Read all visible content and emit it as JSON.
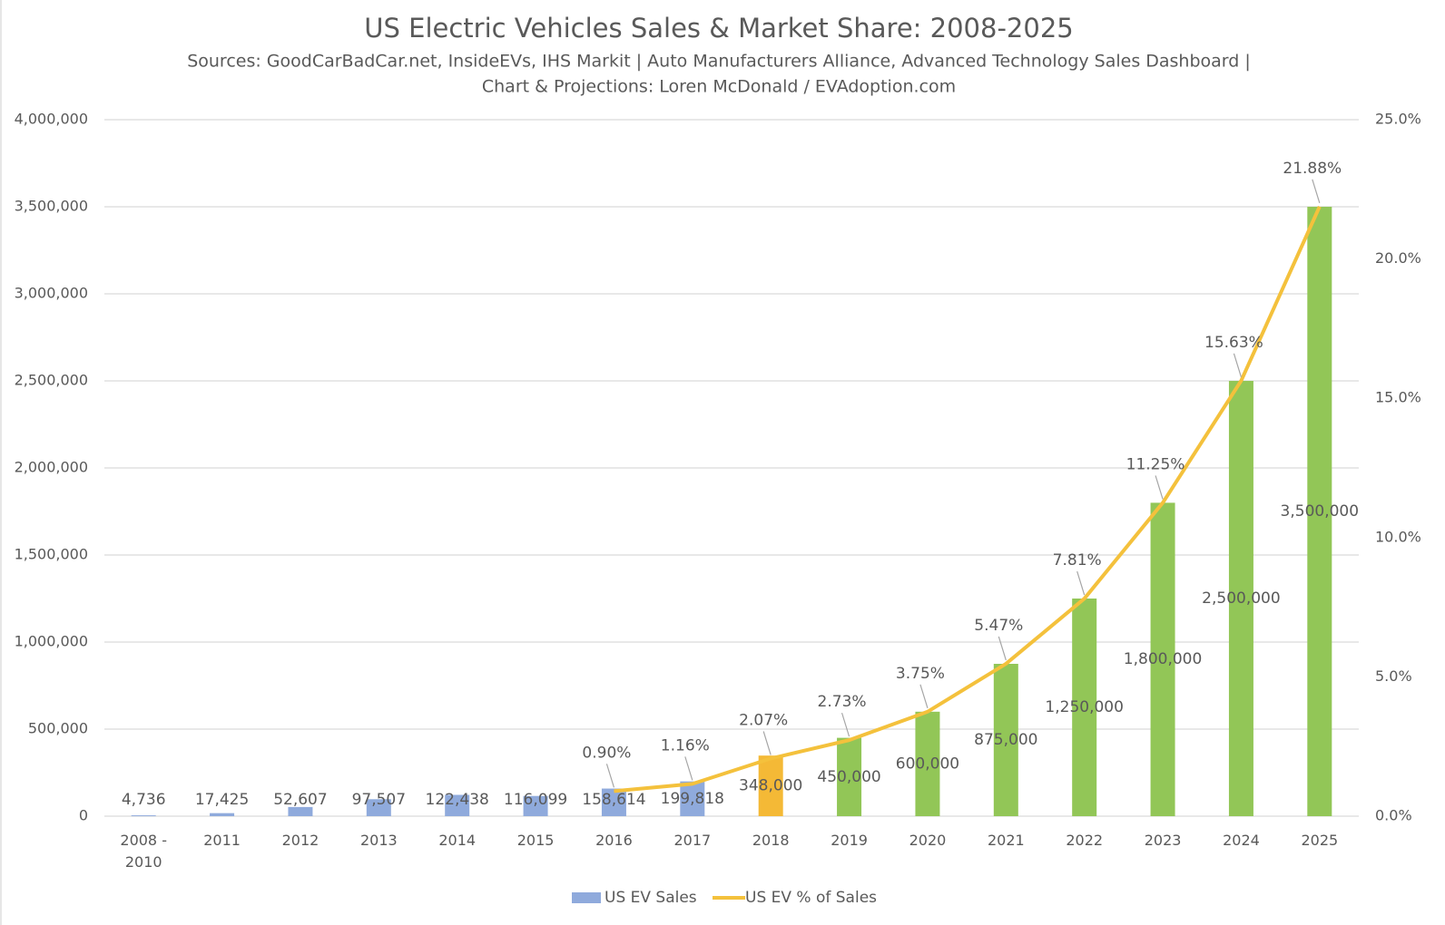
{
  "chart_data": {
    "type": "bar",
    "title": "US Electric Vehicles Sales & Market Share: 2008-2025",
    "subtitle": [
      "Sources: GoodCarBadCar.net, InsideEVs, IHS Markit | Auto Manufacturers Alliance, Advanced Technology Sales Dashboard |",
      "Chart & Projections: Loren McDonald / EVAdoption.com"
    ],
    "categories": [
      "2008 - 2010",
      "2011",
      "2012",
      "2013",
      "2014",
      "2015",
      "2016",
      "2017",
      "2018",
      "2019",
      "2020",
      "2021",
      "2022",
      "2023",
      "2024",
      "2025"
    ],
    "series": [
      {
        "name": "US EV Sales",
        "type": "bar",
        "color": "#8faadc",
        "colors": [
          "#8faadc",
          "#8faadc",
          "#8faadc",
          "#8faadc",
          "#8faadc",
          "#8faadc",
          "#8faadc",
          "#8faadc",
          "#f4b936",
          "#92c657",
          "#92c657",
          "#92c657",
          "#92c657",
          "#92c657",
          "#92c657",
          "#92c657"
        ],
        "values": [
          4736,
          17425,
          52607,
          97507,
          122438,
          116099,
          158614,
          199818,
          348000,
          450000,
          600000,
          875000,
          1250000,
          1800000,
          2500000,
          3500000
        ],
        "value_labels": [
          "4,736",
          "17,425",
          "52,607",
          "97,507",
          "122,438",
          "116,099",
          "158,614",
          "199,818",
          "348,000",
          "450,000",
          "600,000",
          "875,000",
          "1,250,000",
          "1,800,000",
          "2,500,000",
          "3,500,000"
        ]
      },
      {
        "name": "US EV % of Sales",
        "type": "line",
        "axis": "y2",
        "color": "#f4c13c",
        "values": [
          null,
          null,
          null,
          null,
          null,
          null,
          0.9,
          1.16,
          2.07,
          2.73,
          3.75,
          5.47,
          7.81,
          11.25,
          15.63,
          21.88
        ],
        "value_labels": [
          null,
          null,
          null,
          null,
          null,
          null,
          "0.90%",
          "1.16%",
          "2.07%",
          "2.73%",
          "3.75%",
          "5.47%",
          "7.81%",
          "11.25%",
          "15.63%",
          "21.88%"
        ]
      }
    ],
    "ylim": [
      0,
      4000000
    ],
    "yticks": [
      0,
      {
        "value": 500000,
        "label": "500,000"
      },
      {
        "value": 1000000,
        "label": "1,000,000"
      },
      {
        "value": 1500000,
        "label": "1,500,000"
      },
      {
        "value": 2000000,
        "label": "2,000,000"
      },
      {
        "value": 2500000,
        "label": "2,500,000"
      },
      {
        "value": 3000000,
        "label": "3,000,000"
      },
      {
        "value": 3500000,
        "label": "3,500,000"
      },
      {
        "value": 4000000,
        "label": "4,000,000"
      }
    ],
    "y2lim": [
      0,
      25
    ],
    "y2ticks": [
      {
        "value": 0,
        "label": "0.0%"
      },
      {
        "value": 5,
        "label": "5.0%"
      },
      {
        "value": 10,
        "label": "10.0%"
      },
      {
        "value": 15,
        "label": "15.0%"
      },
      {
        "value": 20,
        "label": "20.0%"
      },
      {
        "value": 25,
        "label": "25.0%"
      }
    ],
    "grid": true,
    "legend": "bottom"
  }
}
